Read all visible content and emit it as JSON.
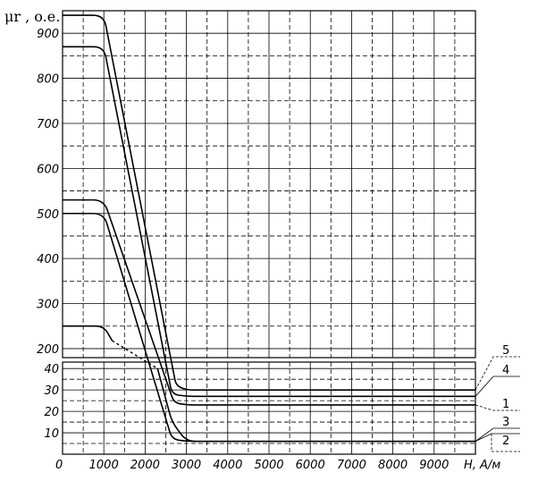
{
  "chart_data": {
    "type": "line",
    "ylabel": "μr , o.e.",
    "xlabel": "H, A/м",
    "x_ticks": [
      0,
      1000,
      2000,
      3000,
      4000,
      5000,
      6000,
      7000,
      8000,
      9000
    ],
    "x_tick_labels": [
      "0",
      "1000",
      "2000",
      "3000",
      "4000",
      "5000",
      "6000",
      "7000",
      "8000",
      "9000"
    ],
    "xlim": [
      0,
      10000
    ],
    "upper_panel": {
      "ylim": [
        180,
        950
      ],
      "y_ticks": [
        200,
        300,
        400,
        500,
        600,
        700,
        800,
        900
      ],
      "y_tick_labels": [
        "200",
        "300",
        "400",
        "500",
        "600",
        "700",
        "800",
        "900"
      ]
    },
    "lower_panel": {
      "ylim": [
        0,
        43
      ],
      "y_ticks": [
        10,
        20,
        30,
        40
      ],
      "y_tick_labels": [
        "10",
        "20",
        "30",
        "40"
      ]
    },
    "grid": true,
    "series": [
      {
        "name": "1",
        "x": [
          0,
          1000,
          2700,
          3000,
          10000
        ],
        "y": [
          530,
          530,
          24,
          23,
          23
        ],
        "leader": "dotted"
      },
      {
        "name": "2",
        "x": [
          0,
          1000,
          2650,
          3000,
          10000
        ],
        "y": [
          500,
          500,
          7,
          6,
          6
        ],
        "leader": "box"
      },
      {
        "name": "3",
        "x": [
          0,
          1000,
          2300,
          2650,
          3000,
          10000
        ],
        "y": [
          250,
          250,
          40,
          15,
          6,
          6
        ],
        "dashed_x": [
          1200,
          2300
        ],
        "leader": "solid"
      },
      {
        "name": "4",
        "x": [
          0,
          500,
          1000,
          2650,
          3000,
          10000
        ],
        "y": [
          870,
          870,
          870,
          28,
          27,
          27
        ],
        "leader": "solid"
      },
      {
        "name": "5",
        "x": [
          0,
          1000,
          2750,
          3000,
          10000
        ],
        "y": [
          940,
          940,
          32,
          30,
          30
        ],
        "leader": "dotted"
      }
    ]
  }
}
